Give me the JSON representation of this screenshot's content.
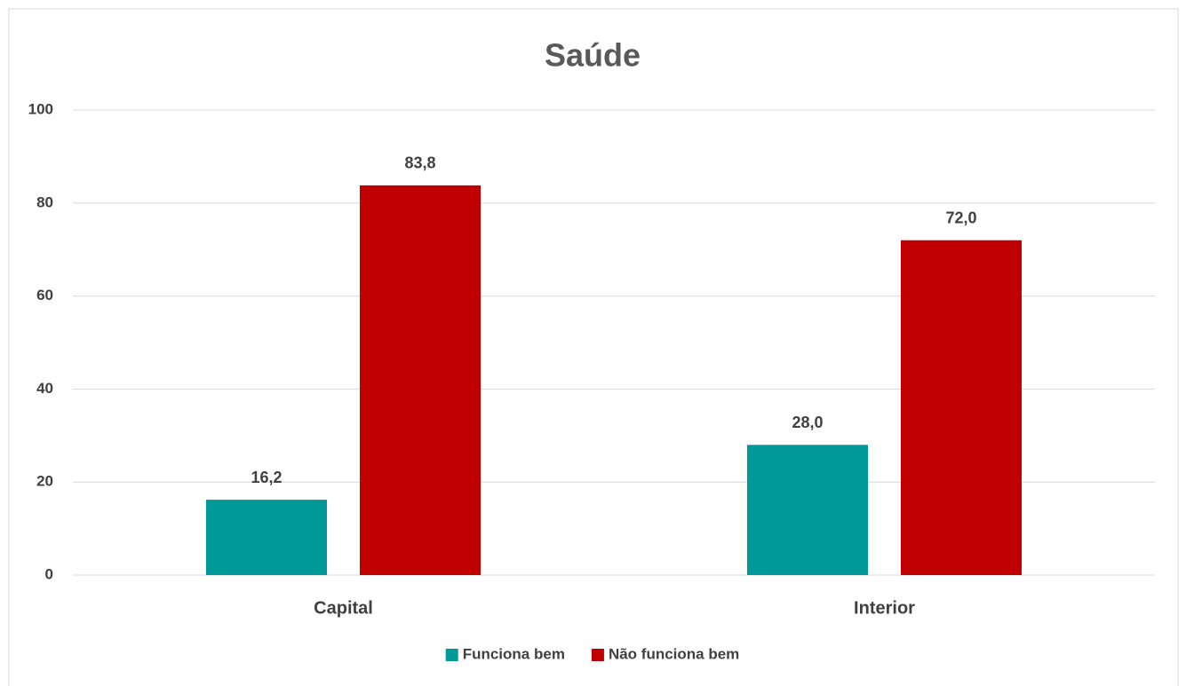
{
  "chart_data": {
    "type": "bar",
    "title": "Saúde",
    "categories": [
      "Capital",
      "Interior"
    ],
    "series": [
      {
        "name": "Funciona bem",
        "color": "#009999",
        "values": [
          16.2,
          28.0
        ],
        "value_labels": [
          "16,2",
          "28,0"
        ]
      },
      {
        "name": "Não funciona bem",
        "color": "#c00000",
        "values": [
          83.8,
          72.0
        ],
        "value_labels": [
          "83,8",
          "72,0"
        ]
      }
    ],
    "ylim": [
      0,
      100
    ],
    "yticks": [
      0,
      20,
      40,
      60,
      80,
      100
    ],
    "grid": true,
    "legend": "bottom"
  }
}
